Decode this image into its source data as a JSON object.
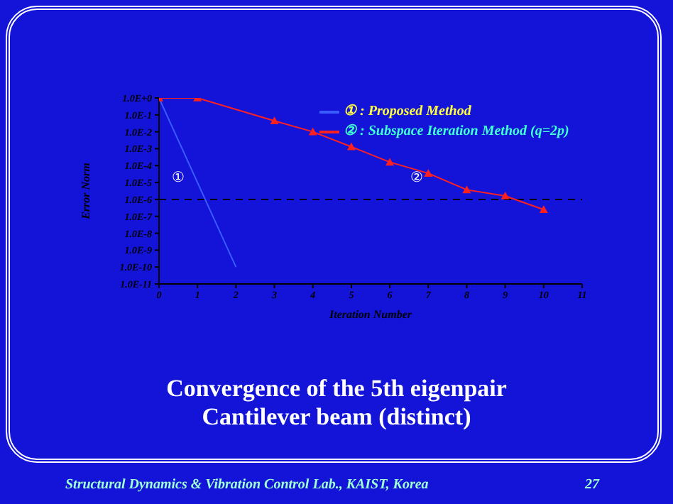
{
  "chart_data": {
    "type": "line",
    "title": "Convergence of the 5th eigenpair",
    "subtitle": "Cantilever beam (distinct)",
    "xlabel": "Iteration Number",
    "ylabel": "Error Norm",
    "annotations": [
      "①",
      "②",
      "Structural Dynamics & Vibration Control Lab., KAIST, Korea",
      "27"
    ],
    "series": [
      {
        "name": "① : Proposed Method",
        "color": "#3a5cff",
        "x": [
          0,
          1,
          2
        ],
        "values": [
          1,
          1e-05,
          1e-10
        ],
        "marker": "none"
      },
      {
        "name": "② : Subspace Iteration Method (q=2p)",
        "color": "#ff2020",
        "x": [
          0,
          1,
          3,
          4,
          5,
          6,
          7,
          8,
          9,
          10
        ],
        "values": [
          1,
          1,
          0.044,
          0.01,
          0.0013,
          0.00016,
          3.5e-05,
          3.7e-06,
          1.6e-06,
          2.5e-07
        ],
        "marker": "triangle"
      }
    ],
    "xlim": [
      0,
      11
    ],
    "xticks": [
      0,
      1,
      2,
      3,
      4,
      5,
      6,
      7,
      8,
      9,
      10,
      11
    ],
    "ylim": [
      1e-11,
      1
    ],
    "yticks": [
      {
        "value": 1,
        "label": "1.0E+0"
      },
      {
        "value": 0.1,
        "label": "1.0E-1"
      },
      {
        "value": 0.01,
        "label": "1.0E-2"
      },
      {
        "value": 0.001,
        "label": "1.0E-3"
      },
      {
        "value": 0.0001,
        "label": "1.0E-4"
      },
      {
        "value": 1e-05,
        "label": "1.0E-5"
      },
      {
        "value": 1e-06,
        "label": "1.0E-6"
      },
      {
        "value": 1e-07,
        "label": "1.0E-7"
      },
      {
        "value": 1e-08,
        "label": "1.0E-8"
      },
      {
        "value": 1e-09,
        "label": "1.0E-9"
      },
      {
        "value": 1e-10,
        "label": "1.0E-10"
      },
      {
        "value": 1e-11,
        "label": "1.0E-11"
      }
    ],
    "log": true,
    "grid": false,
    "legend": "top right",
    "line_style": "solid",
    "ref_lines": [
      {
        "axis": "y",
        "value": 1e-06,
        "color": "#000000",
        "line_style": "dashed"
      }
    ]
  }
}
